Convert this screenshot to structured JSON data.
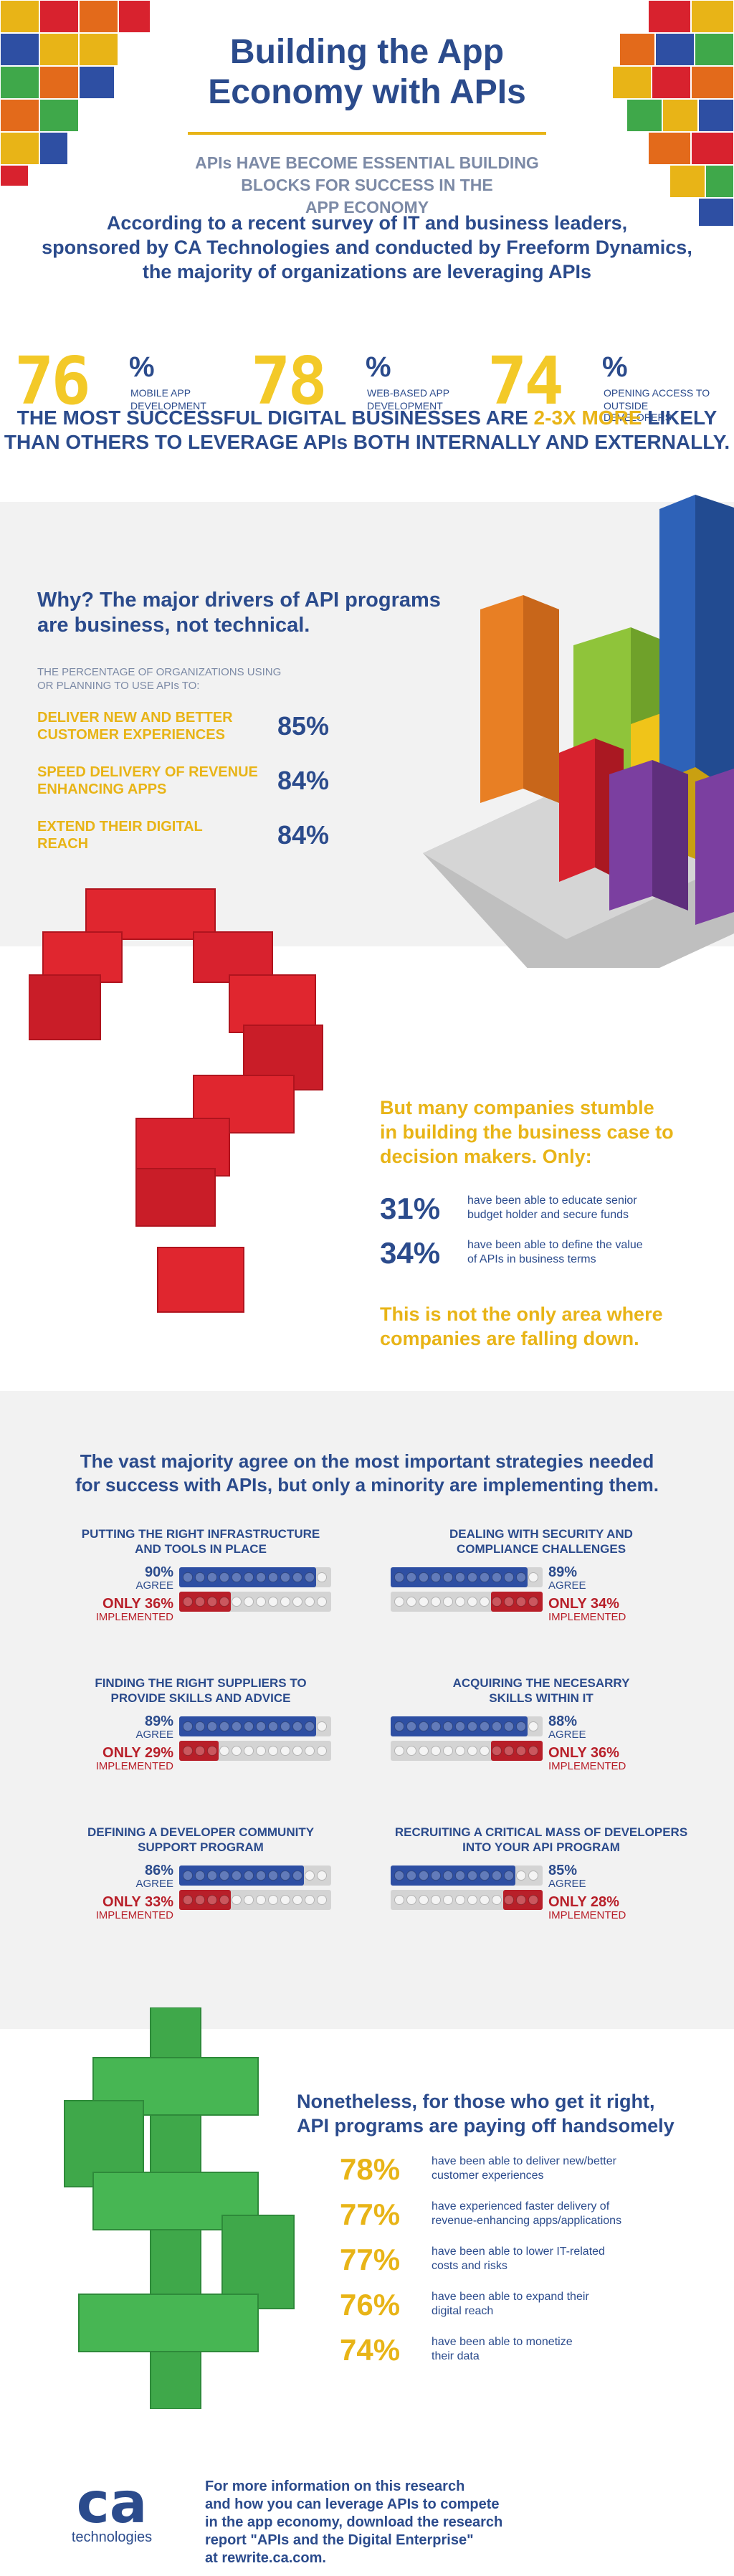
{
  "hero": {
    "title_line1": "Building the App",
    "title_line2": "Economy with APIs",
    "subtitle_line1": "APIs HAVE BECOME ESSENTIAL BUILDING",
    "subtitle_line2": "BLOCKS FOR SUCCESS IN THE",
    "subtitle_line3": "APP ECONOMY",
    "survey_line1": "According to a recent survey of IT and business leaders,",
    "survey_line2": "sponsored by CA Technologies and conducted by Freeform Dynamics,",
    "survey_line3": "the majority of organizations are leveraging APIs"
  },
  "big_stats": [
    {
      "value": "76",
      "pct": "%",
      "label_line1": "MOBILE APP",
      "label_line2": "DEVELOPMENT"
    },
    {
      "value": "78",
      "pct": "%",
      "label_line1": "WEB-BASED APP",
      "label_line2": "DEVELOPMENT"
    },
    {
      "value": "74",
      "pct": "%",
      "label_line1": "OPENING ACCESS TO",
      "label_line2": "OUTSIDE DEVELOPERS"
    }
  ],
  "headline": {
    "line1_a": "THE MOST SUCCESSFUL DIGITAL BUSINESSES ARE ",
    "line1_b": "2-3X MORE",
    "line1_c": " LIKELY",
    "line2": "THAN OTHERS TO LEVERAGE APIs BOTH INTERNALLY AND EXTERNALLY."
  },
  "drivers": {
    "title_line1": "Why? The major drivers of API programs",
    "title_line2": "are business, not technical.",
    "intro_line1": "THE PERCENTAGE OF ORGANIZATIONS USING",
    "intro_line2": "OR PLANNING TO USE APIs TO:",
    "items": [
      {
        "line1": "DELIVER NEW AND BETTER",
        "line2": "CUSTOMER EXPERIENCES",
        "value": "85%"
      },
      {
        "line1": "SPEED DELIVERY OF REVENUE",
        "line2": "ENHANCING APPS",
        "value": "84%"
      },
      {
        "line1": "EXTEND THEIR DIGITAL",
        "line2": "REACH",
        "value": "84%"
      }
    ]
  },
  "stumble": {
    "title_line1": "But many companies stumble",
    "title_line2": "in building the business case to",
    "title_line3": "decision makers. Only:",
    "items": [
      {
        "value": "31%",
        "line1": "have been able to educate senior",
        "line2": "budget holder and secure funds"
      },
      {
        "value": "34%",
        "line1": "have been able to define the value",
        "line2": "of APIs in business terms"
      }
    ],
    "footer_line1": "This is not the only area where",
    "footer_line2": "companies are falling down."
  },
  "strategies": {
    "title_line1": "The vast majority agree on the most important strategies needed",
    "title_line2": "for success with APIs, but only a minority are implementing them.",
    "agree_label": "AGREE",
    "implemented_label": "IMPLEMENTED",
    "items": [
      {
        "title_line1": "PUTTING THE RIGHT INFRASTRUCTURE",
        "title_line2": "AND TOOLS IN PLACE",
        "agree": "90%",
        "implemented": "ONLY 36%",
        "agree_frac": 0.9,
        "impl_frac": 0.36
      },
      {
        "title_line1": "DEALING WITH SECURITY AND",
        "title_line2": "COMPLIANCE CHALLENGES",
        "agree": "89%",
        "implemented": "ONLY 34%",
        "agree_frac": 0.89,
        "impl_frac": 0.34
      },
      {
        "title_line1": "FINDING THE RIGHT SUPPLIERS TO",
        "title_line2": "PROVIDE SKILLS AND ADVICE",
        "agree": "89%",
        "implemented": "ONLY 29%",
        "agree_frac": 0.89,
        "impl_frac": 0.29
      },
      {
        "title_line1": "ACQUIRING THE NECESARRY",
        "title_line2": "SKILLS WITHIN IT",
        "agree": "88%",
        "implemented": "ONLY 36%",
        "agree_frac": 0.88,
        "impl_frac": 0.36
      },
      {
        "title_line1": "DEFINING A DEVELOPER COMMUNITY",
        "title_line2": "SUPPORT PROGRAM",
        "agree": "86%",
        "implemented": "ONLY 33%",
        "agree_frac": 0.86,
        "impl_frac": 0.33
      },
      {
        "title_line1": "RECRUITING A CRITICAL MASS OF DEVELOPERS",
        "title_line2": "INTO YOUR API PROGRAM",
        "agree": "85%",
        "implemented": "ONLY 28%",
        "agree_frac": 0.85,
        "impl_frac": 0.28
      }
    ]
  },
  "payoff": {
    "title_line1": "Nonetheless, for those who get it right,",
    "title_line2": "API programs are paying off handsomely",
    "items": [
      {
        "value": "78%",
        "line1": "have been able to deliver new/better",
        "line2": "customer experiences"
      },
      {
        "value": "77%",
        "line1": "have experienced faster delivery of",
        "line2": "revenue-enhancing apps/applications"
      },
      {
        "value": "77%",
        "line1": "have been able to lower IT-related",
        "line2": "costs and risks"
      },
      {
        "value": "76%",
        "line1": "have been able to expand their",
        "line2": "digital reach"
      },
      {
        "value": "74%",
        "line1": "have been able to monetize",
        "line2": "their data"
      }
    ]
  },
  "footer": {
    "logo_text": "ca",
    "logo_sub": "technologies",
    "line1": "For more information on this research",
    "line2": "and how you can leverage APIs to compete",
    "line3": "in the app economy, download the research",
    "line4": "report \"APIs and the Digital Enterprise\"",
    "line5": "at rewrite.ca.com."
  },
  "colors": {
    "navy": "#2b4b8c",
    "gold": "#e8b417",
    "red": "#d8222e",
    "green": "#3fa84a",
    "brick_blue": "#2e4fa3",
    "brick_grey": "#d4d4d4"
  }
}
